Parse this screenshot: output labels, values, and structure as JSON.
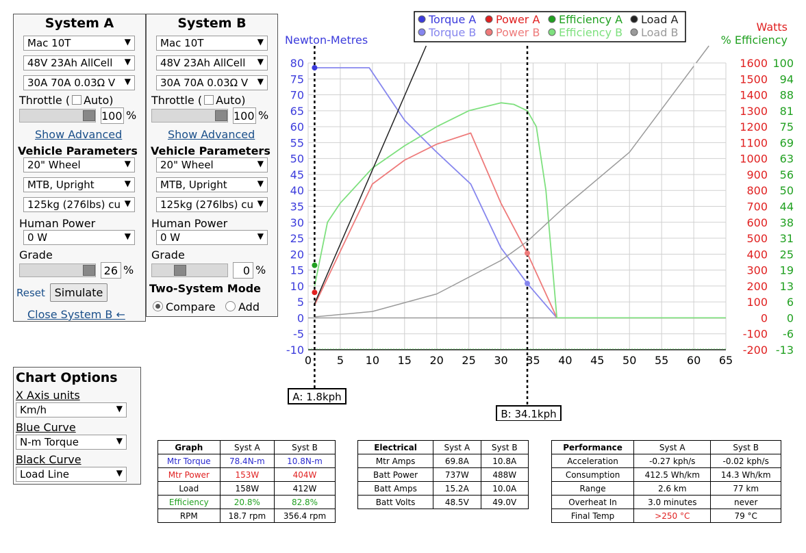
{
  "systemA": {
    "title": "System A",
    "motor": "Mac 10T",
    "battery": "48V 23Ah AllCell",
    "controller": "30A 70A 0.03Ω V",
    "throttle_label": "Throttle (",
    "auto_label": "Auto)",
    "throttle_value": "100",
    "pct": "%",
    "show_advanced": "Show Advanced",
    "vehicle_params": "Vehicle Parameters",
    "wheel": "20\"  Wheel",
    "bike": "MTB, Upright",
    "mass": "125kg (276lbs) cu",
    "human_power_label": "Human Power",
    "human_power": "0 W",
    "grade_label": "Grade",
    "grade_value": "26",
    "reset": "Reset",
    "simulate": "Simulate",
    "close_b": "Close System B ←"
  },
  "systemB": {
    "title": "System B",
    "motor": "Mac 10T",
    "battery": "48V 23Ah AllCell",
    "controller": "30A 70A 0.03Ω V",
    "throttle_label": "Throttle (",
    "auto_label": "Auto)",
    "throttle_value": "100",
    "pct": "%",
    "show_advanced": "Show Advanced",
    "vehicle_params": "Vehicle Parameters",
    "wheel": "20\"  Wheel",
    "bike": "MTB, Upright",
    "mass": "125kg (276lbs) cu",
    "human_power_label": "Human Power",
    "human_power": "0 W",
    "grade_label": "Grade",
    "grade_value": "0",
    "two_system_mode": "Two-System Mode",
    "compare": "Compare",
    "add": "Add"
  },
  "chartOptions": {
    "title": "Chart Options",
    "x_axis_label": "X Axis units",
    "x_axis_value": "Km/h",
    "blue_label": "Blue Curve",
    "blue_value": "N-m Torque",
    "black_label": "Black Curve",
    "black_value": "Load Line"
  },
  "legend": {
    "a": [
      "Torque A",
      "Power A",
      "Efficiency A",
      "Load A"
    ],
    "b": [
      "Torque B",
      "Power B",
      "Efficiency B",
      "Load B"
    ]
  },
  "colors": {
    "torque_a": "#3b3bdc",
    "torque_b": "#8686ee",
    "power_a": "#e02020",
    "power_b": "#ee7a7a",
    "eff_a": "#20a020",
    "eff_b": "#7ee07e",
    "load_a": "#222222",
    "load_b": "#9a9a9a",
    "grid": "#d0d0d0"
  },
  "chart_data": {
    "type": "line",
    "ylabel_left": "Newton-Metres",
    "ylabel_right_1": "Watts",
    "ylabel_right_2": "% Efficiency",
    "xlim": [
      0,
      65
    ],
    "ylim": [
      -10,
      80
    ],
    "x_ticks": [
      "0",
      "5",
      "10",
      "15",
      "20",
      "25",
      "30",
      "35",
      "40",
      "45",
      "50",
      "55",
      "60",
      "65"
    ],
    "y_ticks": [
      "-10",
      "-5",
      "0",
      "5",
      "10",
      "15",
      "20",
      "25",
      "30",
      "35",
      "40",
      "45",
      "50",
      "55",
      "60",
      "65",
      "70",
      "75",
      "80"
    ],
    "watt_ticks": [
      "-200",
      "-100",
      "0",
      "100",
      "200",
      "300",
      "400",
      "500",
      "600",
      "700",
      "800",
      "900",
      "1000",
      "1100",
      "1200",
      "1300",
      "1400",
      "1500",
      "1600"
    ],
    "eff_ticks": [
      "-13",
      "-6",
      "0",
      "6",
      "13",
      "19",
      "25",
      "31",
      "38",
      "44",
      "50",
      "56",
      "63",
      "69",
      "75",
      "81",
      "88",
      "94",
      "100"
    ],
    "series": [
      {
        "key": "torque_b",
        "x": [
          1,
          9.5,
          15,
          20,
          25.3,
          30,
          34.1,
          38.7,
          65
        ],
        "y": [
          78.5,
          78.5,
          62,
          52,
          42,
          22,
          10.8,
          0,
          0
        ]
      },
      {
        "key": "power_b",
        "x": [
          1,
          10,
          15,
          20,
          25.3,
          30,
          34.1,
          38.7,
          65
        ],
        "y": [
          4,
          42,
          49.5,
          54.5,
          58,
          36,
          20.3,
          0,
          0
        ]
      },
      {
        "key": "eff_b",
        "x": [
          1,
          3,
          5,
          10,
          15,
          20,
          25,
          30,
          32,
          34.1,
          35.5,
          37,
          38.7,
          65
        ],
        "y": [
          10,
          30,
          36,
          47,
          54,
          60,
          65,
          67.5,
          67,
          65,
          60,
          40,
          0,
          0
        ]
      },
      {
        "key": "load_b",
        "x": [
          1,
          10,
          20,
          30,
          34.1,
          40,
          50,
          60
        ],
        "y": [
          0.3,
          2,
          7.5,
          18,
          24,
          35,
          52,
          79
        ]
      },
      {
        "key": "load_a",
        "x": [
          1,
          18.5
        ],
        "y": [
          4.5,
          86
        ]
      }
    ],
    "markers": [
      {
        "key": "torque_a",
        "x": 1,
        "y": 78.5
      },
      {
        "key": "eff_a",
        "x": 1,
        "y": 16.5
      },
      {
        "key": "power_a",
        "x": 1,
        "y": 8
      },
      {
        "key": "power_b",
        "x": 34.1,
        "y": 20.3
      },
      {
        "key": "torque_b",
        "x": 34.1,
        "y": 10.8
      }
    ],
    "cursor_a": {
      "x": 1,
      "label": "A: 1.8kph"
    },
    "cursor_b": {
      "x": 34.1,
      "label": "B: 34.1kph"
    }
  },
  "tables": {
    "graph": {
      "headers": [
        "Graph",
        "Syst A",
        "Syst B"
      ],
      "rows": [
        [
          "Mtr Torque",
          "78.4N-m",
          "10.8N-m"
        ],
        [
          "Mtr Power",
          "153W",
          "404W"
        ],
        [
          "Load",
          "158W",
          "412W"
        ],
        [
          "Efficiency",
          "20.8%",
          "82.8%"
        ],
        [
          "RPM",
          "18.7 rpm",
          "356.4 rpm"
        ]
      ]
    },
    "electrical": {
      "headers": [
        "Electrical",
        "Syst A",
        "Syst B"
      ],
      "rows": [
        [
          "Mtr Amps",
          "69.8A",
          "10.8A"
        ],
        [
          "Batt Power",
          "737W",
          "488W"
        ],
        [
          "Batt Amps",
          "15.2A",
          "10.0A"
        ],
        [
          "Batt Volts",
          "48.5V",
          "49.0V"
        ]
      ]
    },
    "performance": {
      "headers": [
        "Performance",
        "Syst A",
        "Syst B"
      ],
      "rows": [
        [
          "Acceleration",
          "-0.27 kph/s",
          "-0.02 kph/s"
        ],
        [
          "Consumption",
          "412.5 Wh/km",
          "14.3 Wh/km"
        ],
        [
          "Range",
          "2.6 km",
          "77 km"
        ],
        [
          "Overheat In",
          "3.0 minutes",
          "never"
        ],
        [
          "Final Temp",
          ">250 °C",
          "79 °C"
        ]
      ]
    }
  }
}
